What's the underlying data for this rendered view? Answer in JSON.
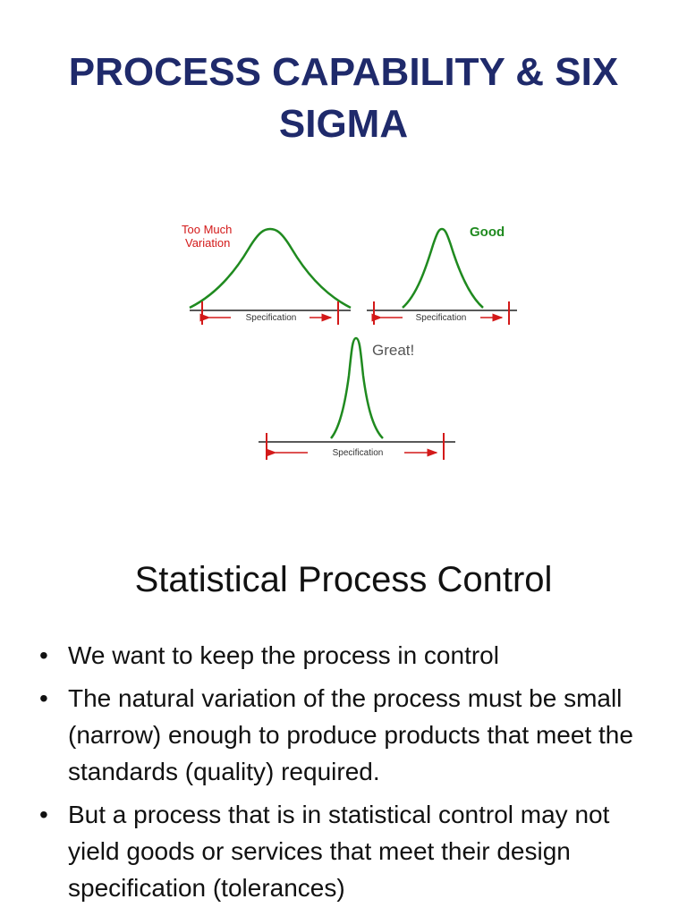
{
  "slide": {
    "title_line1": "PROCESS CAPABILITY & SIX",
    "title_line2": "SIGMA"
  },
  "figure": {
    "panels": [
      {
        "label_line1": "Too Much",
        "label_line2": "Variation",
        "spec_label": "Specification",
        "label_color": "#d31919"
      },
      {
        "label": "Good",
        "spec_label": "Specification",
        "label_color": "#1f8a1f"
      },
      {
        "label": "Great!",
        "spec_label": "Specification",
        "label_color": "#555555"
      }
    ],
    "curve_color": "#1f8a1f",
    "spec_color": "#d31919"
  },
  "section": {
    "heading": "Statistical Process Control"
  },
  "bullets": [
    "We want to keep the process in control",
    "The natural variation of the process must be small (narrow) enough to produce products that meet the standards (quality) required.",
    "But a process that is in statistical control may not yield goods or services that meet their design specification (tolerances)"
  ],
  "bullet_symbol": "•",
  "colors": {
    "title": "#1f2a6b",
    "text": "#111111"
  }
}
